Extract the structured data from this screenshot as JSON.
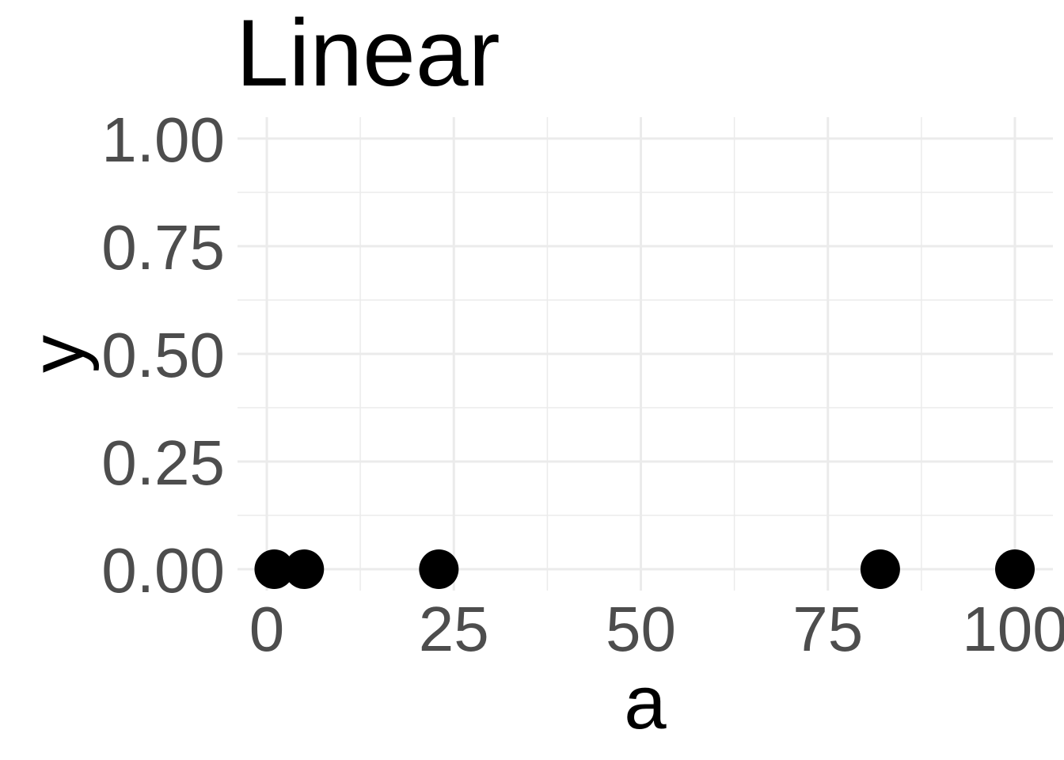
{
  "chart_data": {
    "type": "scatter",
    "title": "Linear",
    "xlabel": "a",
    "ylabel": "y",
    "xlim": [
      0,
      100
    ],
    "ylim": [
      0,
      1
    ],
    "x_ticks": [
      0,
      25,
      50,
      75,
      100
    ],
    "x_tick_labels": [
      "0",
      "25",
      "50",
      "75",
      "100"
    ],
    "y_ticks": [
      0,
      0.25,
      0.5,
      0.75,
      1
    ],
    "y_tick_labels": [
      "0.00",
      "0.25",
      "0.50",
      "0.75",
      "1.00"
    ],
    "grid": true,
    "legend": "none",
    "point_color": "#000000",
    "points": [
      {
        "x": 1,
        "y": 0
      },
      {
        "x": 5,
        "y": 0
      },
      {
        "x": 23,
        "y": 0
      },
      {
        "x": 82,
        "y": 0
      },
      {
        "x": 100,
        "y": 0
      }
    ]
  }
}
